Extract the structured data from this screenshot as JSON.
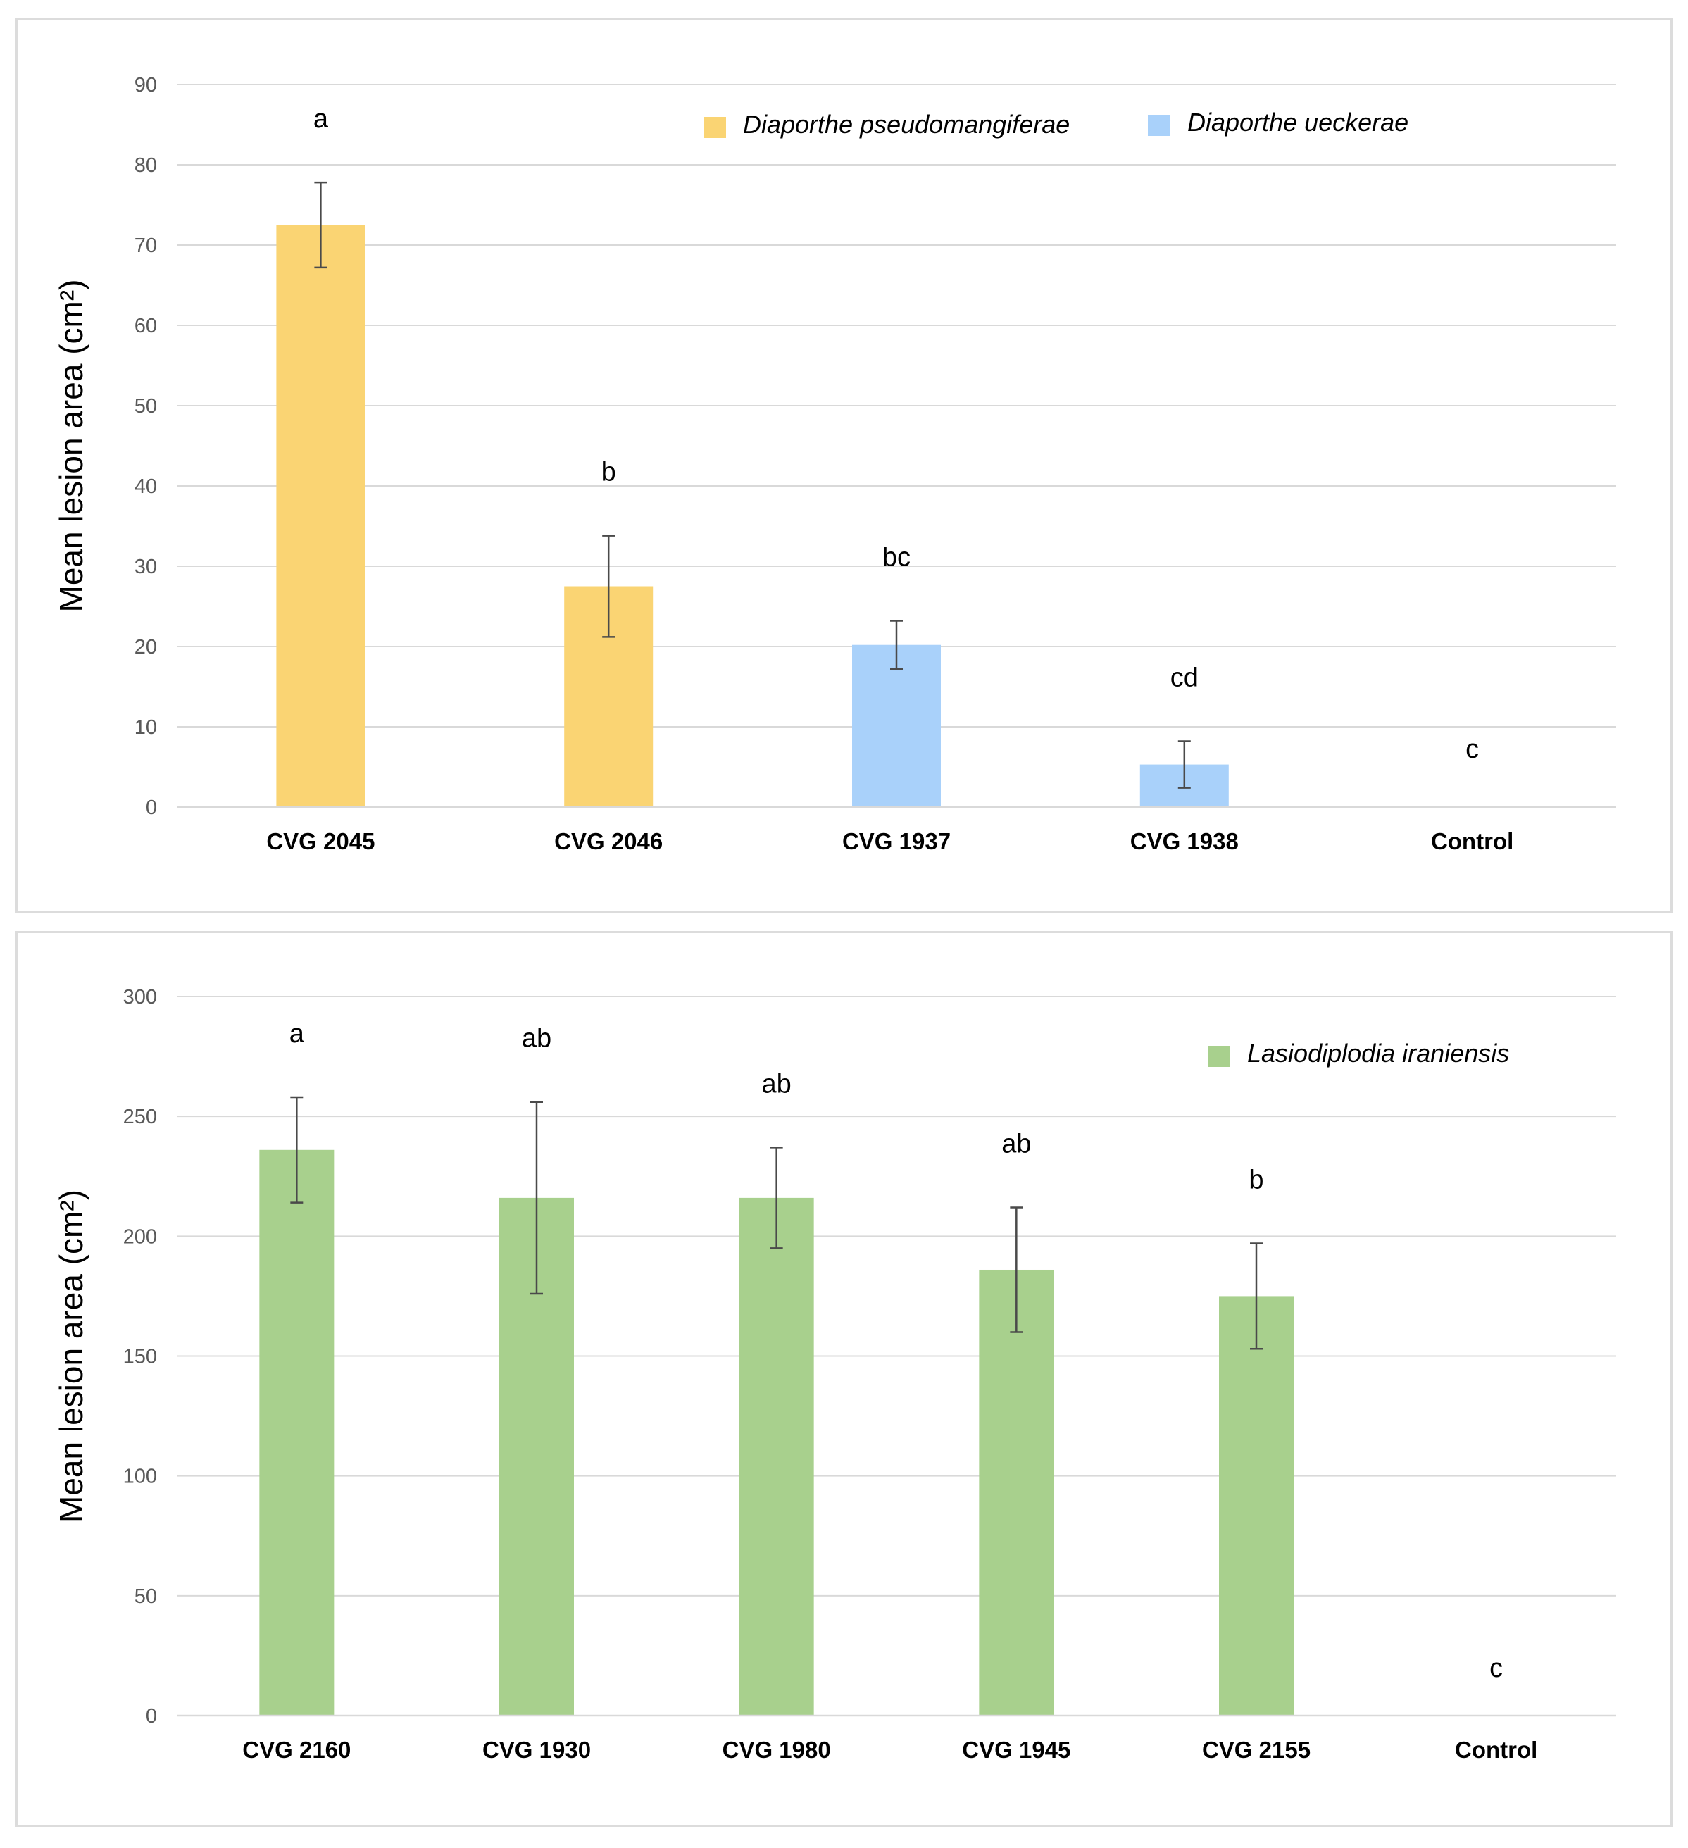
{
  "chart_data": [
    {
      "type": "bar",
      "title": "",
      "xlabel": "",
      "ylabel": "Mean lesion area (cm²)",
      "ylim": [
        0,
        90
      ],
      "yticks": [
        0,
        10,
        20,
        30,
        40,
        50,
        60,
        70,
        80,
        90
      ],
      "grid": true,
      "legend_position": "top-right",
      "legend": [
        {
          "label": "Diaporthe pseudomangiferae",
          "color": "#fad473"
        },
        {
          "label": "Diaporthe ueckerae",
          "color": "#a9d1fa"
        }
      ],
      "categories": [
        "CVG 2045",
        "CVG 2046",
        "CVG 1937",
        "CVG 1938",
        "Control"
      ],
      "values": [
        72.5,
        27.5,
        20.2,
        5.3,
        0
      ],
      "errors": [
        5.3,
        6.3,
        3.0,
        2.9,
        0
      ],
      "colors": [
        "#fad473",
        "#fad473",
        "#a9d1fa",
        "#a9d1fa",
        "#ffffff"
      ],
      "letters": [
        "a",
        "b",
        "bc",
        "cd",
        "c"
      ]
    },
    {
      "type": "bar",
      "title": "",
      "xlabel": "",
      "ylabel": "Mean lesion area (cm²)",
      "ylim": [
        0,
        300
      ],
      "yticks": [
        0,
        50,
        100,
        150,
        200,
        250,
        300
      ],
      "grid": true,
      "legend_position": "top-right",
      "legend": [
        {
          "label": "Lasiodiplodia iraniensis",
          "color": "#a8d08d"
        }
      ],
      "categories": [
        "CVG 2160",
        "CVG 1930",
        "CVG 1980",
        "CVG 1945",
        "CVG 2155",
        "Control"
      ],
      "values": [
        236,
        216,
        216,
        186,
        175,
        0
      ],
      "errors": [
        22,
        40,
        21,
        26,
        22,
        0
      ],
      "colors": [
        "#a8d08d",
        "#a8d08d",
        "#a8d08d",
        "#a8d08d",
        "#a8d08d",
        "#ffffff"
      ],
      "letters": [
        "a",
        "ab",
        "ab",
        "ab",
        "b",
        "c"
      ]
    }
  ]
}
